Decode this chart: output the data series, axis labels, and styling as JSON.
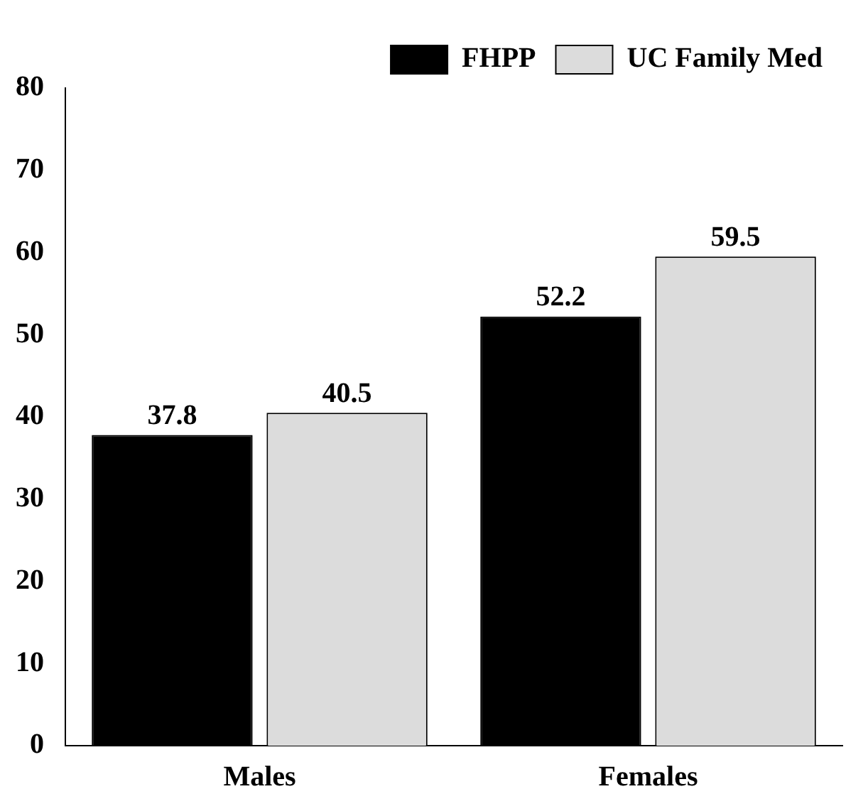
{
  "chart_data": {
    "type": "bar",
    "categories": [
      "Males",
      "Females"
    ],
    "series": [
      {
        "name": "FHPP",
        "color": "#000000",
        "values": [
          37.8,
          52.2
        ]
      },
      {
        "name": "UC Family Med",
        "color": "#dcdcdc",
        "values": [
          40.5,
          59.5
        ]
      }
    ],
    "ylim": [
      0,
      80
    ],
    "yticks": [
      0,
      10,
      20,
      30,
      40,
      50,
      60,
      70,
      80
    ],
    "grid": false,
    "legend": "top right",
    "data_labels": true
  }
}
